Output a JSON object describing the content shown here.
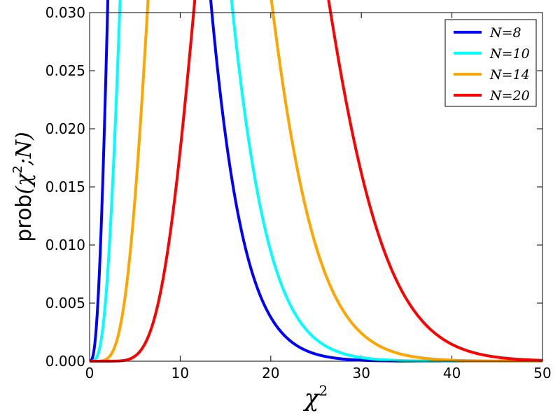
{
  "chart_data": {
    "type": "line",
    "xlabel": "χ",
    "xlabel_superscript": "2",
    "ylabel_prefix": "prob",
    "ylabel_math": "(χ",
    "ylabel_superscript": "2",
    "ylabel_math_suffix": ";N)",
    "xlim": [
      0,
      50
    ],
    "ylim": [
      0,
      0.03
    ],
    "xticks": [
      0,
      10,
      20,
      30,
      40,
      50
    ],
    "xtick_labels": [
      "0",
      "10",
      "20",
      "30",
      "40",
      "50"
    ],
    "yticks": [
      0.0,
      0.005,
      0.01,
      0.015,
      0.02,
      0.025,
      0.03
    ],
    "ytick_labels": [
      "0.000",
      "0.005",
      "0.010",
      "0.015",
      "0.020",
      "0.025",
      "0.030"
    ],
    "grid": false,
    "legend_position": "top-right",
    "distribution": "chi-squared",
    "series": [
      {
        "name": "N=8",
        "dof": 8,
        "color": "#0000ff"
      },
      {
        "name": "N=10",
        "dof": 10,
        "color": "#00ffff"
      },
      {
        "name": "N=14",
        "dof": 14,
        "color": "#ffa500"
      },
      {
        "name": "N=20",
        "dof": 20,
        "color": "#ff0000"
      }
    ]
  }
}
